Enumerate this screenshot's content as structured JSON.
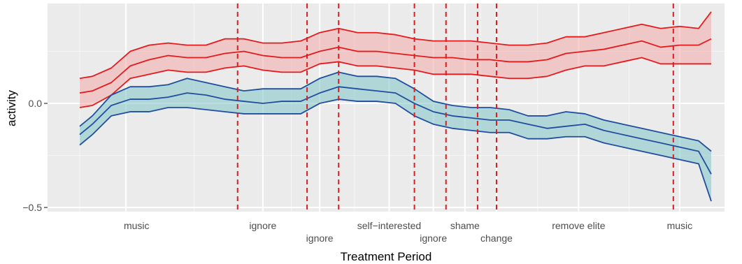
{
  "chart_data": {
    "type": "line",
    "title": "",
    "xlabel": "Treatment Period",
    "ylabel": "activity",
    "ylim": [
      -0.52,
      0.48
    ],
    "grid": true,
    "y_ticks": [
      {
        "value": 0.0,
        "label": "0.0"
      },
      {
        "value": -0.5,
        "label": "−0.5"
      }
    ],
    "x_range": [
      0,
      100
    ],
    "x": [
      0,
      2,
      5,
      8,
      11,
      14,
      17,
      20,
      23,
      26,
      29,
      32,
      35,
      38,
      41,
      44,
      47,
      50,
      53,
      56,
      59,
      62,
      65,
      68,
      71,
      74,
      77,
      80,
      83,
      86,
      89,
      92,
      95,
      98,
      100
    ],
    "series": [
      {
        "color": "#e41a1c",
        "fill": "#f4a9a9",
        "mean": [
          0.05,
          0.06,
          0.1,
          0.18,
          0.21,
          0.23,
          0.22,
          0.22,
          0.24,
          0.25,
          0.23,
          0.22,
          0.22,
          0.25,
          0.27,
          0.25,
          0.25,
          0.24,
          0.23,
          0.22,
          0.22,
          0.21,
          0.21,
          0.2,
          0.2,
          0.21,
          0.24,
          0.25,
          0.26,
          0.28,
          0.3,
          0.27,
          0.28,
          0.28,
          0.31
        ],
        "upper": [
          0.12,
          0.13,
          0.17,
          0.25,
          0.28,
          0.29,
          0.28,
          0.28,
          0.31,
          0.31,
          0.29,
          0.29,
          0.3,
          0.34,
          0.36,
          0.34,
          0.34,
          0.33,
          0.31,
          0.3,
          0.3,
          0.3,
          0.29,
          0.28,
          0.28,
          0.29,
          0.32,
          0.32,
          0.34,
          0.36,
          0.38,
          0.36,
          0.37,
          0.36,
          0.44
        ],
        "lower": [
          -0.02,
          -0.01,
          0.04,
          0.12,
          0.14,
          0.16,
          0.15,
          0.15,
          0.17,
          0.18,
          0.16,
          0.15,
          0.15,
          0.19,
          0.2,
          0.18,
          0.18,
          0.17,
          0.16,
          0.14,
          0.14,
          0.14,
          0.13,
          0.12,
          0.12,
          0.13,
          0.16,
          0.18,
          0.18,
          0.2,
          0.22,
          0.19,
          0.19,
          0.19,
          0.19
        ]
      },
      {
        "color": "#1f4e9e",
        "fill": "#7fc4c8",
        "mean": [
          -0.15,
          -0.1,
          -0.01,
          0.02,
          0.02,
          0.03,
          0.05,
          0.04,
          0.02,
          0.01,
          0.0,
          0.01,
          0.01,
          0.05,
          0.08,
          0.07,
          0.06,
          0.05,
          0.0,
          -0.04,
          -0.06,
          -0.07,
          -0.08,
          -0.08,
          -0.1,
          -0.12,
          -0.11,
          -0.1,
          -0.13,
          -0.15,
          -0.17,
          -0.19,
          -0.21,
          -0.23,
          -0.34
        ],
        "upper": [
          -0.11,
          -0.06,
          0.04,
          0.08,
          0.08,
          0.09,
          0.12,
          0.1,
          0.08,
          0.06,
          0.07,
          0.07,
          0.07,
          0.12,
          0.15,
          0.13,
          0.13,
          0.12,
          0.07,
          0.01,
          -0.01,
          -0.02,
          -0.02,
          -0.03,
          -0.06,
          -0.06,
          -0.04,
          -0.05,
          -0.08,
          -0.1,
          -0.12,
          -0.14,
          -0.16,
          -0.18,
          -0.23
        ],
        "lower": [
          -0.2,
          -0.15,
          -0.06,
          -0.04,
          -0.04,
          -0.02,
          -0.02,
          -0.03,
          -0.04,
          -0.05,
          -0.05,
          -0.05,
          -0.05,
          0.0,
          0.02,
          0.01,
          0.01,
          0.0,
          -0.06,
          -0.1,
          -0.12,
          -0.13,
          -0.14,
          -0.14,
          -0.17,
          -0.17,
          -0.16,
          -0.16,
          -0.19,
          -0.21,
          -0.23,
          -0.25,
          -0.27,
          -0.29,
          -0.47
        ]
      }
    ],
    "vlines": [
      25,
      36,
      41,
      53,
      58,
      63,
      66,
      94
    ],
    "vline_color": "#e41a1c",
    "x_labels": [
      {
        "x": 9,
        "row": 0,
        "label": "music"
      },
      {
        "x": 29,
        "row": 0,
        "label": "ignore"
      },
      {
        "x": 38,
        "row": 1,
        "label": "ignore"
      },
      {
        "x": 49,
        "row": 0,
        "label": "self−interested"
      },
      {
        "x": 56,
        "row": 1,
        "label": "ignore"
      },
      {
        "x": 61,
        "row": 0,
        "label": "shame"
      },
      {
        "x": 66,
        "row": 1,
        "label": "change"
      },
      {
        "x": 79,
        "row": 0,
        "label": "remove elite"
      },
      {
        "x": 95,
        "row": 0,
        "label": "music"
      }
    ]
  }
}
